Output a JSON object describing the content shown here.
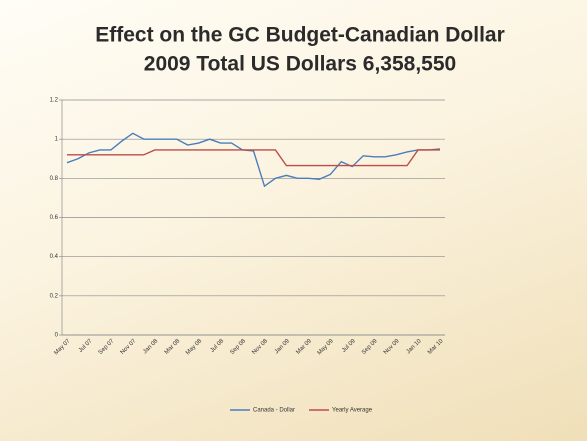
{
  "chart_data": {
    "type": "line",
    "title": "Effect on the GC Budget-Canadian Dollar",
    "subtitle": "2009 Total US Dollars 6,358,550",
    "categories": [
      "May 07",
      null,
      "Jul 07",
      null,
      "Sep 07",
      null,
      "Nov 07",
      null,
      "Jan 08",
      null,
      "Mar 08",
      null,
      "May 08",
      null,
      "Jul 08",
      null,
      "Sep 08",
      null,
      "Nov 08",
      null,
      "Jan 09",
      null,
      "Mar 09",
      null,
      "May 09",
      null,
      "Jul 09",
      null,
      "Sep 09",
      null,
      "Nov 09",
      null,
      "Jan 10",
      null,
      "Mar 10"
    ],
    "series": [
      {
        "name": "Canada - Dollar",
        "color": "#4a7ebb",
        "values": [
          0.88,
          0.9,
          0.93,
          0.945,
          0.945,
          0.99,
          1.03,
          1.0,
          1.0,
          1.0,
          1.0,
          0.97,
          0.98,
          1.0,
          0.98,
          0.98,
          0.945,
          0.94,
          0.76,
          0.8,
          0.815,
          0.8,
          0.8,
          0.795,
          0.82,
          0.885,
          0.86,
          0.915,
          0.91,
          0.91,
          0.92,
          0.935,
          0.945,
          0.945,
          0.95
        ]
      },
      {
        "name": "Yearly Average",
        "color": "#be4b48",
        "values": [
          0.92,
          0.92,
          0.92,
          0.92,
          0.92,
          0.92,
          0.92,
          0.92,
          0.945,
          0.945,
          0.945,
          0.945,
          0.945,
          0.945,
          0.945,
          0.945,
          0.945,
          0.945,
          0.945,
          0.945,
          0.865,
          0.865,
          0.865,
          0.865,
          0.865,
          0.865,
          0.865,
          0.865,
          0.865,
          0.865,
          0.865,
          0.865,
          0.945,
          0.945,
          0.945
        ]
      }
    ],
    "ylim": [
      0,
      1.2
    ],
    "yticks": [
      0,
      0.2,
      0.4,
      0.6,
      0.8,
      1,
      1.2
    ],
    "grid": true
  }
}
